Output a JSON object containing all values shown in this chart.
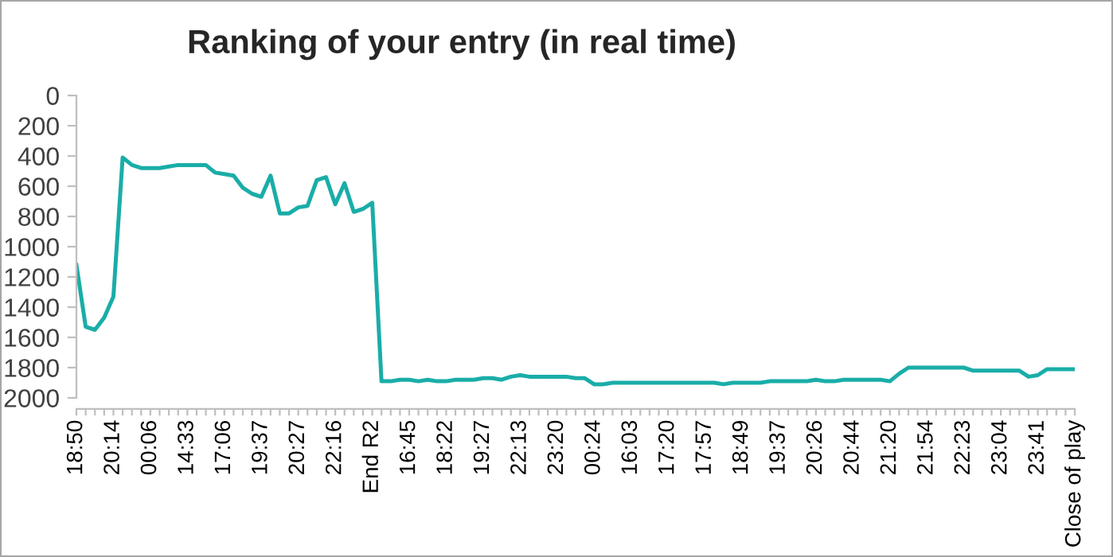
{
  "chart_data": {
    "type": "line",
    "title": "Ranking of your entry (in real time)",
    "categories": [
      "18:50",
      null,
      null,
      null,
      "20:14",
      null,
      null,
      null,
      "00:06",
      null,
      null,
      null,
      "14:33",
      null,
      null,
      null,
      "17:06",
      null,
      null,
      null,
      "19:37",
      null,
      null,
      null,
      "20:27",
      null,
      null,
      null,
      "22:16",
      null,
      null,
      null,
      "End R2",
      null,
      null,
      null,
      "16:45",
      null,
      null,
      null,
      "18:22",
      null,
      null,
      null,
      "19:27",
      null,
      null,
      null,
      "22:13",
      null,
      null,
      null,
      "23:20",
      null,
      null,
      null,
      "00:24",
      null,
      null,
      null,
      "16:03",
      null,
      null,
      null,
      "17:20",
      null,
      null,
      null,
      "17:57",
      null,
      null,
      null,
      "18:49",
      null,
      null,
      null,
      "19:37",
      null,
      null,
      null,
      "20:26",
      null,
      null,
      null,
      "20:44",
      null,
      null,
      null,
      "21:20",
      null,
      null,
      null,
      "21:54",
      null,
      null,
      null,
      "22:23",
      null,
      null,
      null,
      "23:04",
      null,
      null,
      null,
      "23:41",
      null,
      null,
      null,
      "Close of play"
    ],
    "series": [
      {
        "color": "#1aada8",
        "values": [
          1120,
          1530,
          1550,
          1470,
          1330,
          410,
          460,
          480,
          480,
          480,
          470,
          460,
          460,
          460,
          460,
          510,
          520,
          530,
          610,
          650,
          670,
          530,
          780,
          780,
          740,
          730,
          560,
          540,
          720,
          580,
          770,
          750,
          710,
          1890,
          1890,
          1880,
          1880,
          1890,
          1880,
          1890,
          1890,
          1880,
          1880,
          1880,
          1870,
          1870,
          1880,
          1860,
          1850,
          1860,
          1860,
          1860,
          1860,
          1860,
          1870,
          1870,
          1910,
          1910,
          1900,
          1900,
          1900,
          1900,
          1900,
          1900,
          1900,
          1900,
          1900,
          1900,
          1900,
          1900,
          1910,
          1900,
          1900,
          1900,
          1900,
          1890,
          1890,
          1890,
          1890,
          1890,
          1880,
          1890,
          1890,
          1880,
          1880,
          1880,
          1880,
          1880,
          1890,
          1840,
          1800,
          1800,
          1800,
          1800,
          1800,
          1800,
          1800,
          1820,
          1820,
          1820,
          1820,
          1820,
          1820,
          1860,
          1850,
          1810,
          1810,
          1810,
          1810
        ]
      }
    ],
    "ylim": [
      2000,
      0
    ],
    "yticks": [
      0,
      200,
      400,
      600,
      800,
      1000,
      1200,
      1400,
      1600,
      1800,
      2000
    ],
    "grid": false,
    "legend": false,
    "marker": "none",
    "line_style": "solid"
  }
}
